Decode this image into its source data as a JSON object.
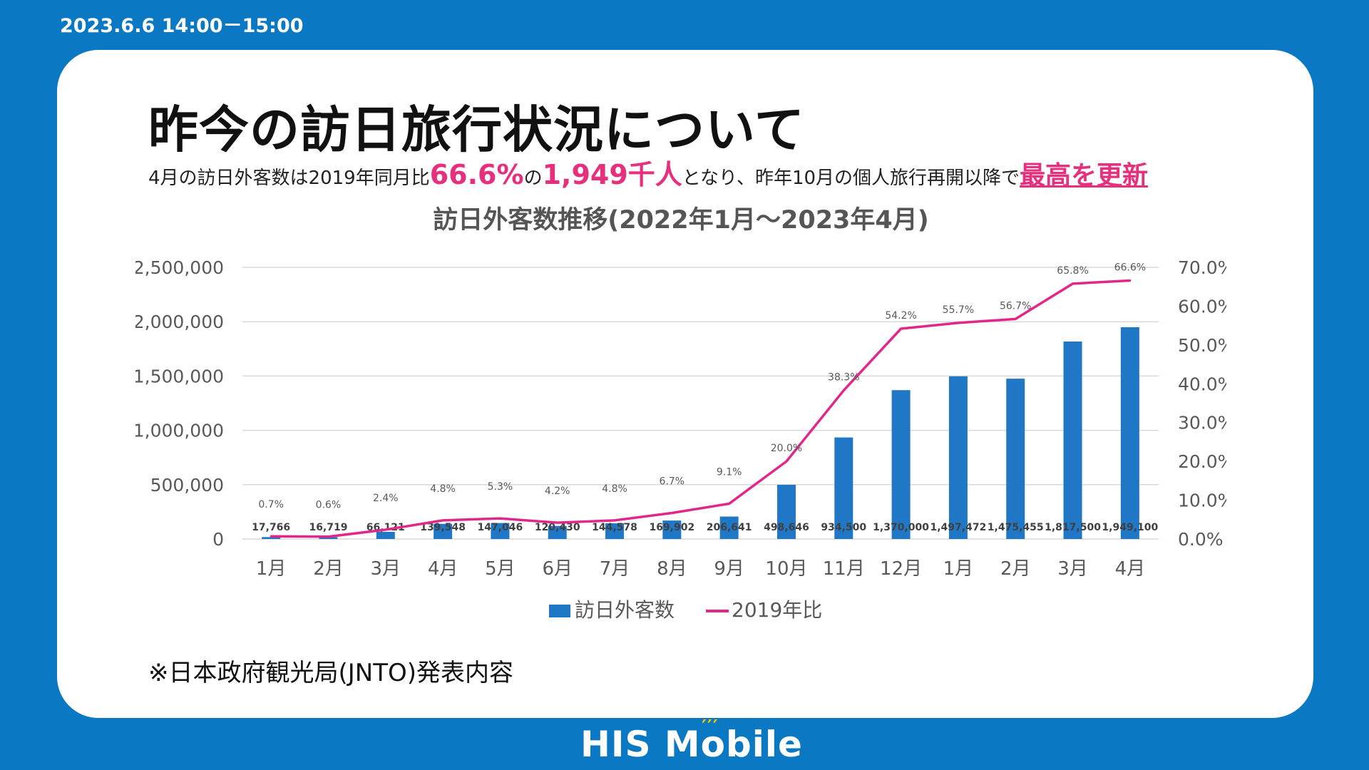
{
  "header": {
    "date": "2023.6.6 14:00－15:00"
  },
  "slide": {
    "title": "昨今の訪日旅行状況について",
    "subtitle": {
      "part1": "4月の訪日外客数は2019年同月比",
      "pct": "66.6%",
      "part2": "の",
      "visitors": "1,949千人",
      "part3": "となり、昨年10月の個人旅行再開以降で",
      "record": "最高を更新"
    },
    "note": "※日本政府観光局(JNTO)発表内容"
  },
  "logo": {
    "text": "HIS Mobile"
  },
  "colors": {
    "background": "#0a78c2",
    "bar": "#1f77c5",
    "line": "#e1288a",
    "highlight": "#e6307d"
  },
  "chart_data": {
    "type": "bar+line",
    "title": "訪日外客数推移(2022年1月～2023年4月)",
    "categories": [
      "1月",
      "2月",
      "3月",
      "4月",
      "5月",
      "6月",
      "7月",
      "8月",
      "9月",
      "10月",
      "11月",
      "12月",
      "1月",
      "2月",
      "3月",
      "4月"
    ],
    "y_left_ticks": [
      "2,500,000",
      "2,000,000",
      "1,500,000",
      "1,000,000",
      "500,000",
      "0"
    ],
    "y_right_ticks": [
      "70.0%",
      "60.0%",
      "50.0%",
      "40.0%",
      "30.0%",
      "20.0%",
      "10.0%",
      "0.0%"
    ],
    "ylim_left": [
      0,
      2500000
    ],
    "ylim_right": [
      0,
      70
    ],
    "series": [
      {
        "name": "訪日外客数",
        "kind": "bar",
        "values": [
          17766,
          16719,
          66121,
          139548,
          147046,
          120430,
          144578,
          169902,
          206641,
          498646,
          934500,
          1370000,
          1497472,
          1475455,
          1817500,
          1949100
        ],
        "labels": [
          "17,766",
          "16,719",
          "66,121",
          "139,548",
          "147,046",
          "120,430",
          "144,578",
          "169,902",
          "206,641",
          "498,646",
          "934,500",
          "1,370,000",
          "1,497,472",
          "1,475,455",
          "1,817,500",
          "1,949,100"
        ]
      },
      {
        "name": "2019年比",
        "kind": "line",
        "values": [
          0.7,
          0.6,
          2.4,
          4.8,
          5.3,
          4.2,
          4.8,
          6.7,
          9.1,
          20.0,
          38.3,
          54.2,
          55.7,
          56.7,
          65.8,
          66.6
        ],
        "labels": [
          "0.7%",
          "0.6%",
          "2.4%",
          "4.8%",
          "5.3%",
          "4.2%",
          "4.8%",
          "6.7%",
          "9.1%",
          "20.0%",
          "38.3%",
          "54.2%",
          "55.7%",
          "56.7%",
          "65.8%",
          "66.6%"
        ]
      }
    ],
    "legend": [
      "訪日外客数",
      "2019年比"
    ],
    "legend_position": "bottom"
  }
}
